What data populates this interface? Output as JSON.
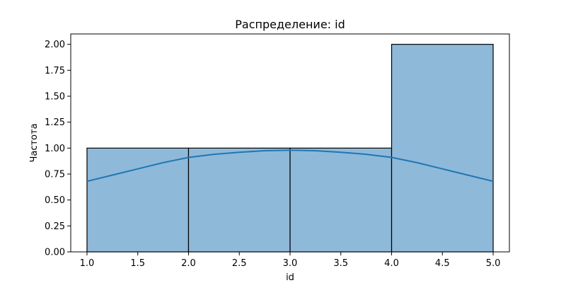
{
  "chart_data": {
    "type": "bar",
    "title": "Распределение: id",
    "xlabel": "id",
    "ylabel": "Частота",
    "bins": [
      {
        "x0": 1.0,
        "x1": 2.0,
        "value": 1
      },
      {
        "x0": 2.0,
        "x1": 3.0,
        "value": 1
      },
      {
        "x0": 3.0,
        "x1": 4.0,
        "value": 1
      },
      {
        "x0": 4.0,
        "x1": 5.0,
        "value": 2
      }
    ],
    "kde_curve": {
      "x": [
        1.0,
        1.25,
        1.5,
        1.75,
        2.0,
        2.25,
        2.5,
        2.75,
        3.0,
        3.25,
        3.5,
        3.75,
        4.0,
        4.25,
        4.5,
        4.75,
        5.0
      ],
      "y": [
        0.68,
        0.74,
        0.8,
        0.86,
        0.91,
        0.94,
        0.96,
        0.975,
        0.98,
        0.975,
        0.96,
        0.94,
        0.91,
        0.86,
        0.8,
        0.74,
        0.68
      ]
    },
    "xlim": [
      0.84,
      5.16
    ],
    "ylim": [
      0,
      2.1
    ],
    "x_ticks": [
      1.0,
      1.5,
      2.0,
      2.5,
      3.0,
      3.5,
      4.0,
      4.5,
      5.0
    ],
    "x_tick_labels": [
      "1.0",
      "1.5",
      "2.0",
      "2.5",
      "3.0",
      "3.5",
      "4.0",
      "4.5",
      "5.0"
    ],
    "y_ticks": [
      0,
      0.25,
      0.5,
      0.75,
      1.0,
      1.25,
      1.5,
      1.75,
      2.0
    ],
    "y_tick_labels": [
      "0.00",
      "0.25",
      "0.50",
      "0.75",
      "1.00",
      "1.25",
      "1.50",
      "1.75",
      "2.00"
    ],
    "grid": false,
    "colors": {
      "bar_fill": "#8fb9d9",
      "bar_edge": "#000000",
      "kde_line": "#1f77b4"
    }
  }
}
